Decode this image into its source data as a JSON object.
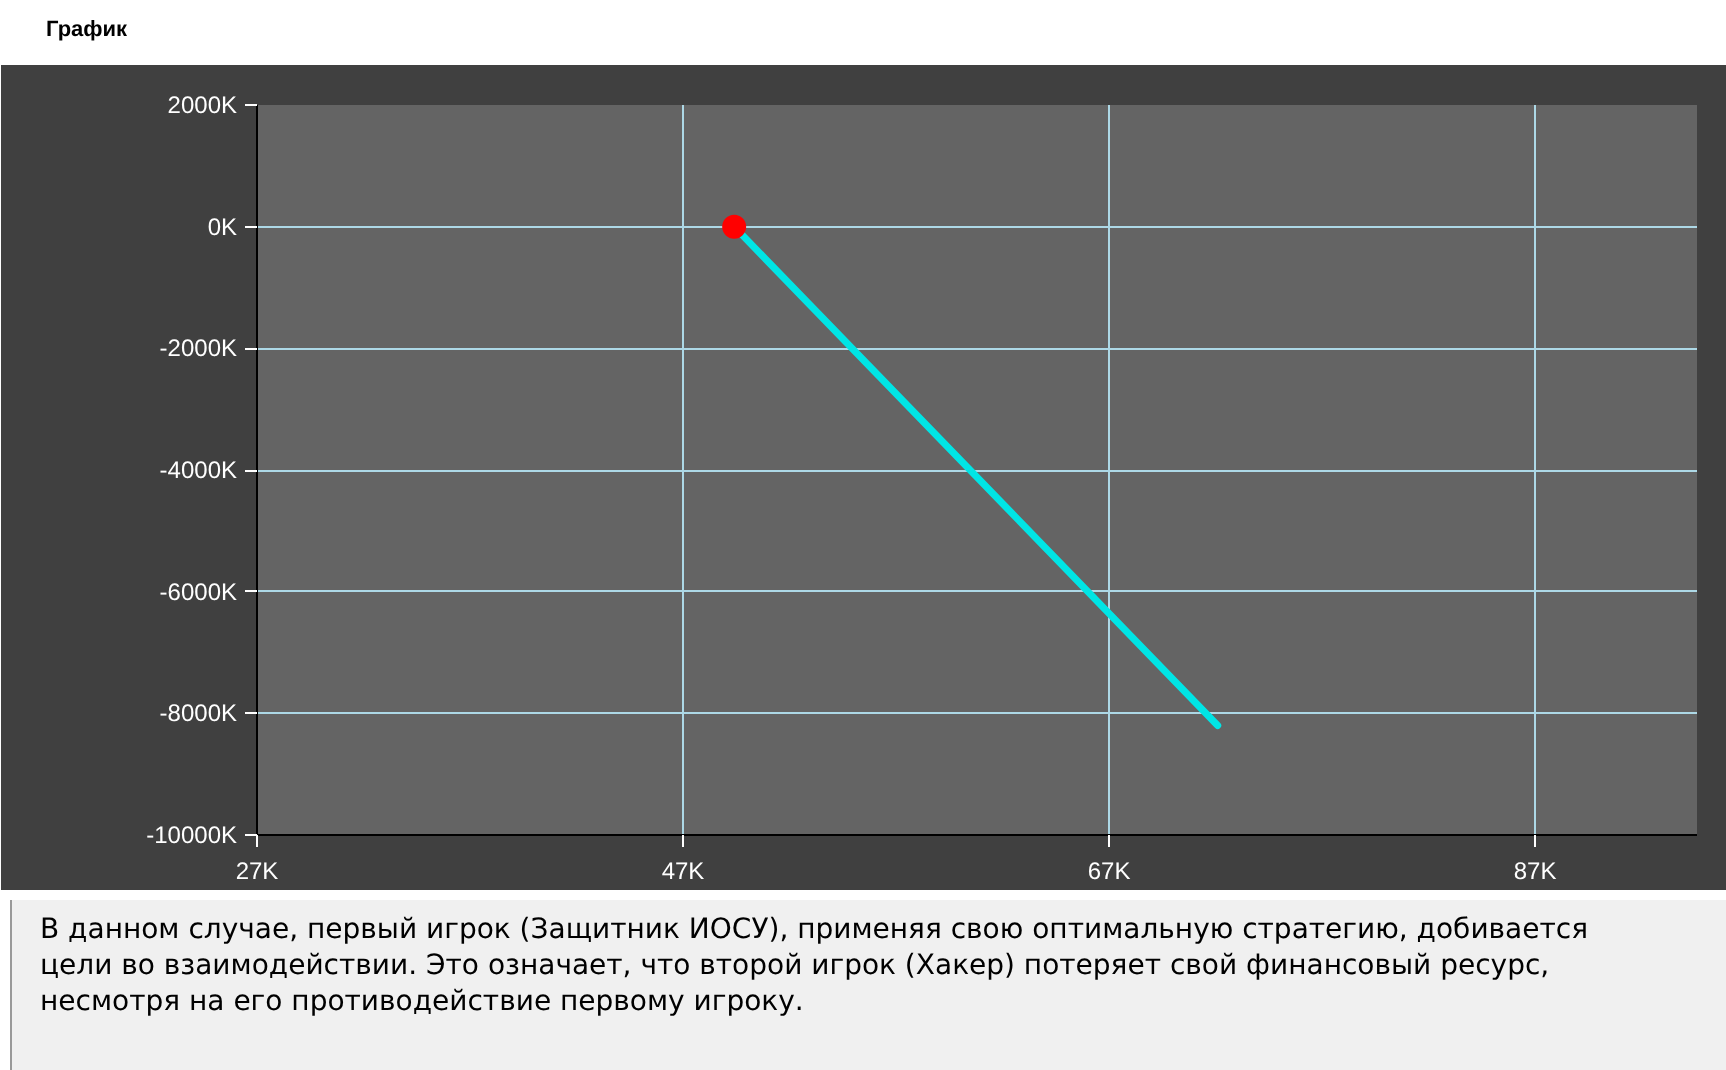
{
  "chart_data": {
    "type": "line",
    "title": "График",
    "series": [
      {
        "color": "#00e5e5",
        "values": [
          0,
          -8200
        ]
      },
      {
        "type": "scatter",
        "color": "#ff0000",
        "x": [
          49.4
        ],
        "values": [
          0
        ]
      }
    ],
    "x": [
      49.4,
      72.1
    ],
    "xlim": [
      27,
      94.6
    ],
    "xticks": [
      {
        "value": 27,
        "label": "27K"
      },
      {
        "value": 47,
        "label": "47K"
      },
      {
        "value": 67,
        "label": "67K"
      },
      {
        "value": 87,
        "label": "87K"
      }
    ],
    "ylim": [
      -10000,
      2000
    ],
    "yticks": [
      {
        "value": -10000,
        "label": "-10000K"
      },
      {
        "value": -8000,
        "label": "-8000K"
      },
      {
        "value": -6000,
        "label": "-6000K"
      },
      {
        "value": -4000,
        "label": "-4000K"
      },
      {
        "value": -2000,
        "label": "-2000K"
      },
      {
        "value": 0,
        "label": "0K"
      },
      {
        "value": 2000,
        "label": "2000K"
      }
    ],
    "grid": true,
    "annotations": [
      "В данном случае, первый игрок (Защитник ИОСУ), применяя свою оптимальную стратегию, добивается цели во взаимодействии. Это означает, что второй игрок (Хакер) потеряет свой финансовый ресурс, несмотря на его противодействие первому игроку."
    ]
  }
}
